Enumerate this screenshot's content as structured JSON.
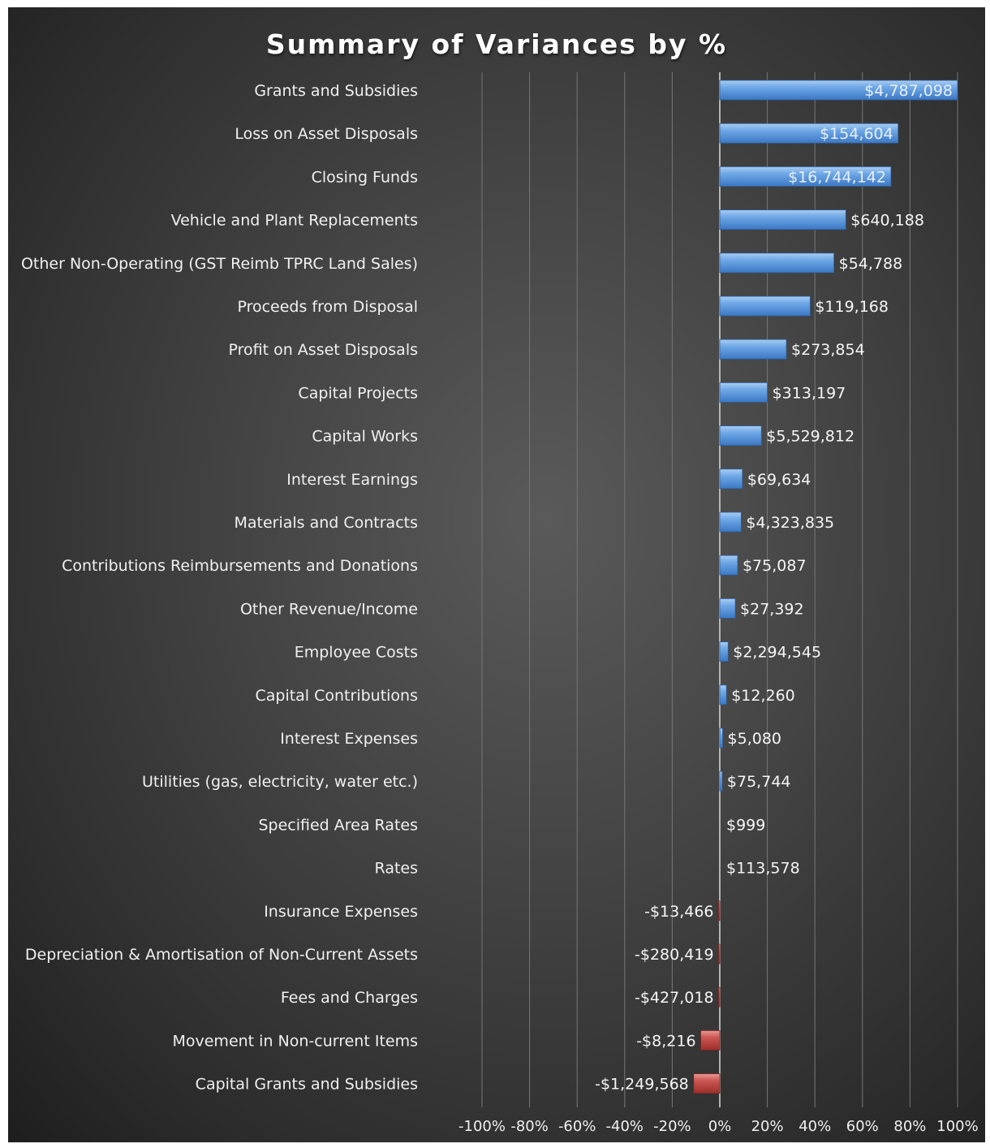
{
  "chart_data": {
    "type": "bar",
    "orientation": "horizontal",
    "title": "Summary of Variances by %",
    "xlim": [
      -100,
      100
    ],
    "x_ticks": [
      "-100%",
      "-80%",
      "-60%",
      "-40%",
      "-20%",
      "0%",
      "20%",
      "40%",
      "60%",
      "80%",
      "100%"
    ],
    "grid": true,
    "legend": "none",
    "colors": {
      "positive": "#5b9bd5",
      "negative": "#c0504d"
    },
    "categories": [
      "Grants and Subsidies",
      "Loss on Asset Disposals",
      "Closing Funds",
      "Vehicle and Plant Replacements",
      "Other Non-Operating (GST Reimb TPRC Land Sales)",
      "Proceeds from Disposal",
      "Profit on Asset Disposals",
      "Capital Projects",
      "Capital Works",
      "Interest Earnings",
      "Materials and Contracts",
      "Contributions Reimbursements and Donations",
      "Other Revenue/Income",
      "Employee Costs",
      "Capital Contributions",
      "Interest Expenses",
      "Utilities (gas, electricity, water etc.)",
      "Specified Area Rates",
      "Rates",
      "Insurance Expenses",
      "Depreciation & Amortisation of Non-Current Assets",
      "Fees and Charges",
      "Movement in Non-current Items",
      "Capital Grants and Subsidies"
    ],
    "values": [
      100,
      75,
      72,
      53,
      48,
      38,
      28,
      20,
      17.5,
      9.5,
      9,
      7.5,
      6.5,
      3.5,
      2.8,
      1.2,
      1,
      0,
      0,
      -0.5,
      -0.5,
      -0.5,
      -8,
      -11
    ],
    "data_labels": [
      "$4,787,098",
      "$154,604",
      "$16,744,142",
      "$640,188",
      "$54,788",
      "$119,168",
      "$273,854",
      "$313,197",
      "$5,529,812",
      "$69,634",
      "$4,323,835",
      "$75,087",
      "$27,392",
      "$2,294,545",
      "$12,260",
      "$5,080",
      "$75,744",
      "$999",
      "$113,578",
      "-$13,466",
      "-$280,419",
      "-$427,018",
      "-$8,216",
      "-$1,249,568"
    ]
  }
}
